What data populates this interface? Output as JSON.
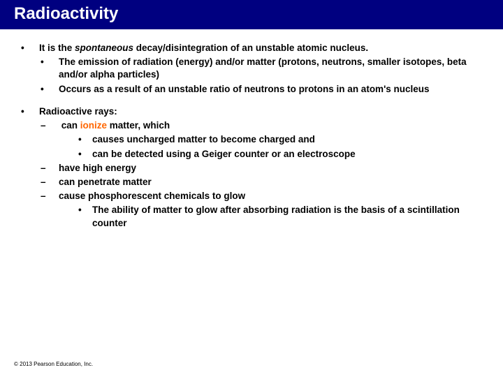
{
  "colors": {
    "title_bg": "#000080",
    "title_fg": "#ffffff",
    "body_text": "#000000",
    "accent": "#ff6600",
    "page_bg": "#ffffff"
  },
  "typography": {
    "title_size_pt": 24,
    "body_size_pt": 13.5,
    "copyright_size_pt": 8,
    "font_family": "Arial",
    "body_weight": "bold"
  },
  "title": "Radioactivity",
  "b1": {
    "pre": "It is the ",
    "em": "spontaneous",
    "post": " decay/disintegration of an unstable atomic nucleus.",
    "sub": {
      "a": "The emission of radiation (energy) and/or matter (protons, neutrons, smaller isotopes, beta and/or alpha particles)",
      "b": "Occurs as a result of an unstable ratio of neutrons to protons in an atom's nucleus"
    }
  },
  "b2": {
    "lead": "Radioactive rays:",
    "d1": {
      "pre": "can ",
      "accent": "ionize",
      "post": " matter, which",
      "sub": {
        "a": "causes uncharged matter to become charged and",
        "b": "can be detected using a Geiger counter or an electroscope"
      }
    },
    "d2": "have high energy",
    "d3": "can penetrate matter",
    "d4": {
      "lead": "cause phosphorescent chemicals to glow",
      "sub": "The ability of matter to glow after absorbing radiation is the basis of a scintillation counter"
    }
  },
  "copyright": "© 2013 Pearson Education, Inc."
}
